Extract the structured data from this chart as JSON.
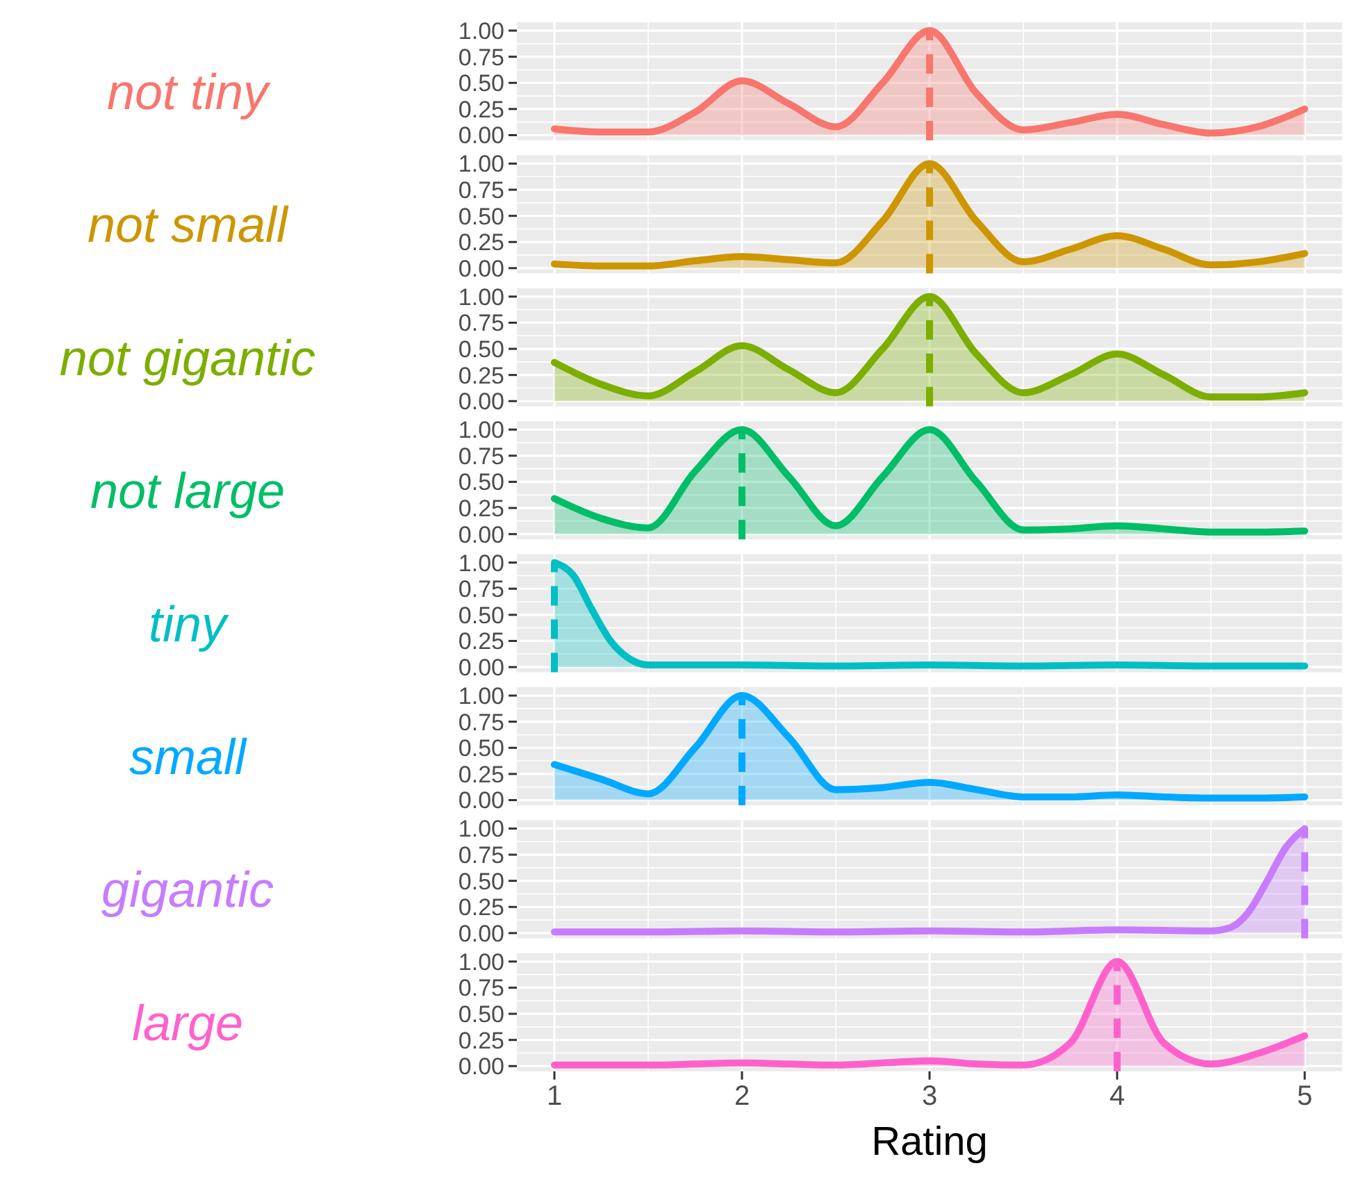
{
  "chart_data": [
    {
      "type": "area",
      "title": "not tiny",
      "x": [
        1,
        1.25,
        1.5,
        1.75,
        2,
        2.25,
        2.5,
        2.75,
        3,
        3.25,
        3.5,
        3.75,
        4,
        4.25,
        4.5,
        4.75,
        5
      ],
      "series": [
        {
          "color": "#f8766d",
          "values": [
            0.06,
            0.03,
            0.03,
            0.22,
            0.52,
            0.3,
            0.08,
            0.5,
            1.0,
            0.4,
            0.05,
            0.12,
            0.2,
            0.1,
            0.02,
            0.08,
            0.25
          ]
        }
      ],
      "xlim": [
        0.8,
        5.2
      ],
      "ylim": [
        -0.05,
        1.08
      ],
      "xticks": [
        1,
        2,
        3,
        4,
        5
      ],
      "yticks": [
        {
          "value": 0,
          "label": "0.00"
        },
        {
          "value": 0.25,
          "label": "0.25"
        },
        {
          "value": 0.5,
          "label": "0.50"
        },
        {
          "value": 0.75,
          "label": "0.75"
        },
        {
          "value": 1,
          "label": "1.00"
        }
      ],
      "grid": true,
      "tick_labels": "y",
      "ref_lines": [
        {
          "axis": "x",
          "value": 3,
          "color": "#f8766d",
          "line_style": "dashed"
        }
      ]
    },
    {
      "type": "area",
      "title": "not small",
      "x": [
        1,
        1.25,
        1.5,
        1.75,
        2,
        2.25,
        2.5,
        2.75,
        3,
        3.25,
        3.5,
        3.75,
        4,
        4.25,
        4.5,
        4.75,
        5
      ],
      "series": [
        {
          "color": "#cd9600",
          "values": [
            0.04,
            0.02,
            0.02,
            0.07,
            0.11,
            0.08,
            0.05,
            0.45,
            1.0,
            0.45,
            0.06,
            0.18,
            0.31,
            0.18,
            0.03,
            0.06,
            0.14
          ]
        }
      ],
      "xlim": [
        0.8,
        5.2
      ],
      "ylim": [
        -0.05,
        1.08
      ],
      "xticks": [
        1,
        2,
        3,
        4,
        5
      ],
      "yticks": [
        {
          "value": 0,
          "label": "0.00"
        },
        {
          "value": 0.25,
          "label": "0.25"
        },
        {
          "value": 0.5,
          "label": "0.50"
        },
        {
          "value": 0.75,
          "label": "0.75"
        },
        {
          "value": 1,
          "label": "1.00"
        }
      ],
      "grid": true,
      "tick_labels": "y",
      "ref_lines": [
        {
          "axis": "x",
          "value": 3,
          "color": "#cd9600",
          "line_style": "dashed"
        }
      ]
    },
    {
      "type": "area",
      "title": "not gigantic",
      "x": [
        1,
        1.25,
        1.5,
        1.75,
        2,
        2.25,
        2.5,
        2.75,
        3,
        3.25,
        3.5,
        3.75,
        4,
        4.25,
        4.5,
        4.75,
        5
      ],
      "series": [
        {
          "color": "#7cae00",
          "values": [
            0.37,
            0.16,
            0.05,
            0.28,
            0.53,
            0.3,
            0.08,
            0.5,
            1.0,
            0.45,
            0.08,
            0.25,
            0.45,
            0.25,
            0.04,
            0.04,
            0.08
          ]
        }
      ],
      "xlim": [
        0.8,
        5.2
      ],
      "ylim": [
        -0.05,
        1.08
      ],
      "xticks": [
        1,
        2,
        3,
        4,
        5
      ],
      "yticks": [
        {
          "value": 0,
          "label": "0.00"
        },
        {
          "value": 0.25,
          "label": "0.25"
        },
        {
          "value": 0.5,
          "label": "0.50"
        },
        {
          "value": 0.75,
          "label": "0.75"
        },
        {
          "value": 1,
          "label": "1.00"
        }
      ],
      "grid": true,
      "tick_labels": "y",
      "ref_lines": [
        {
          "axis": "x",
          "value": 3,
          "color": "#7cae00",
          "line_style": "dashed"
        }
      ]
    },
    {
      "type": "area",
      "title": "not large",
      "x": [
        1,
        1.25,
        1.5,
        1.75,
        2,
        2.25,
        2.5,
        2.75,
        3,
        3.25,
        3.5,
        3.75,
        4,
        4.25,
        4.5,
        4.75,
        5
      ],
      "series": [
        {
          "color": "#00be67",
          "values": [
            0.34,
            0.15,
            0.06,
            0.6,
            1.0,
            0.55,
            0.08,
            0.55,
            1.0,
            0.5,
            0.04,
            0.05,
            0.08,
            0.05,
            0.02,
            0.02,
            0.03
          ]
        }
      ],
      "xlim": [
        0.8,
        5.2
      ],
      "ylim": [
        -0.05,
        1.08
      ],
      "xticks": [
        1,
        2,
        3,
        4,
        5
      ],
      "yticks": [
        {
          "value": 0,
          "label": "0.00"
        },
        {
          "value": 0.25,
          "label": "0.25"
        },
        {
          "value": 0.5,
          "label": "0.50"
        },
        {
          "value": 0.75,
          "label": "0.75"
        },
        {
          "value": 1,
          "label": "1.00"
        }
      ],
      "grid": true,
      "tick_labels": "y",
      "ref_lines": [
        {
          "axis": "x",
          "value": 2,
          "color": "#00be67",
          "line_style": "dashed"
        }
      ]
    },
    {
      "type": "area",
      "title": "tiny",
      "x": [
        1,
        1.1,
        1.2,
        1.3,
        1.4,
        1.5,
        2,
        2.5,
        3,
        3.5,
        4,
        4.5,
        5
      ],
      "series": [
        {
          "color": "#00bfc4",
          "values": [
            1.0,
            0.88,
            0.55,
            0.25,
            0.08,
            0.02,
            0.02,
            0.01,
            0.02,
            0.01,
            0.02,
            0.01,
            0.01
          ]
        }
      ],
      "xlim": [
        0.8,
        5.2
      ],
      "ylim": [
        -0.05,
        1.08
      ],
      "xticks": [
        1,
        2,
        3,
        4,
        5
      ],
      "yticks": [
        {
          "value": 0,
          "label": "0.00"
        },
        {
          "value": 0.25,
          "label": "0.25"
        },
        {
          "value": 0.5,
          "label": "0.50"
        },
        {
          "value": 0.75,
          "label": "0.75"
        },
        {
          "value": 1,
          "label": "1.00"
        }
      ],
      "grid": true,
      "tick_labels": "y",
      "ref_lines": [
        {
          "axis": "x",
          "value": 1,
          "color": "#00bfc4",
          "line_style": "dashed"
        }
      ]
    },
    {
      "type": "area",
      "title": "small",
      "x": [
        1,
        1.25,
        1.5,
        1.75,
        2,
        2.25,
        2.5,
        2.75,
        3,
        3.25,
        3.5,
        3.75,
        4,
        4.25,
        4.5,
        4.75,
        5
      ],
      "series": [
        {
          "color": "#00a9ff",
          "values": [
            0.34,
            0.2,
            0.06,
            0.5,
            1.0,
            0.6,
            0.1,
            0.12,
            0.17,
            0.1,
            0.03,
            0.03,
            0.05,
            0.03,
            0.02,
            0.02,
            0.03
          ]
        }
      ],
      "xlim": [
        0.8,
        5.2
      ],
      "ylim": [
        -0.05,
        1.08
      ],
      "xticks": [
        1,
        2,
        3,
        4,
        5
      ],
      "yticks": [
        {
          "value": 0,
          "label": "0.00"
        },
        {
          "value": 0.25,
          "label": "0.25"
        },
        {
          "value": 0.5,
          "label": "0.50"
        },
        {
          "value": 0.75,
          "label": "0.75"
        },
        {
          "value": 1,
          "label": "1.00"
        }
      ],
      "grid": true,
      "tick_labels": "y",
      "ref_lines": [
        {
          "axis": "x",
          "value": 2,
          "color": "#00a9ff",
          "line_style": "dashed"
        }
      ]
    },
    {
      "type": "area",
      "title": "gigantic",
      "x": [
        1,
        1.5,
        2,
        2.5,
        3,
        3.5,
        4,
        4.5,
        4.6,
        4.7,
        4.8,
        4.9,
        5
      ],
      "series": [
        {
          "color": "#c77cff",
          "values": [
            0.01,
            0.01,
            0.02,
            0.01,
            0.02,
            0.01,
            0.03,
            0.02,
            0.05,
            0.2,
            0.5,
            0.82,
            1.0
          ]
        }
      ],
      "xlim": [
        0.8,
        5.2
      ],
      "ylim": [
        -0.05,
        1.08
      ],
      "xticks": [
        1,
        2,
        3,
        4,
        5
      ],
      "yticks": [
        {
          "value": 0,
          "label": "0.00"
        },
        {
          "value": 0.25,
          "label": "0.25"
        },
        {
          "value": 0.5,
          "label": "0.50"
        },
        {
          "value": 0.75,
          "label": "0.75"
        },
        {
          "value": 1,
          "label": "1.00"
        }
      ],
      "grid": true,
      "tick_labels": "y",
      "ref_lines": [
        {
          "axis": "x",
          "value": 5,
          "color": "#c77cff",
          "line_style": "dashed"
        }
      ]
    },
    {
      "type": "area",
      "title": "large",
      "xlabel": "Rating",
      "x": [
        1,
        1.25,
        1.5,
        1.75,
        2,
        2.25,
        2.5,
        2.75,
        3,
        3.25,
        3.5,
        3.75,
        4,
        4.25,
        4.5,
        4.75,
        5
      ],
      "series": [
        {
          "color": "#ff61cc",
          "values": [
            0.01,
            0.01,
            0.01,
            0.02,
            0.03,
            0.02,
            0.01,
            0.03,
            0.05,
            0.02,
            0.01,
            0.22,
            1.0,
            0.22,
            0.02,
            0.12,
            0.29
          ]
        }
      ],
      "xlim": [
        0.8,
        5.2
      ],
      "ylim": [
        -0.05,
        1.08
      ],
      "xticks": [
        1,
        2,
        3,
        4,
        5
      ],
      "yticks": [
        {
          "value": 0,
          "label": "0.00"
        },
        {
          "value": 0.25,
          "label": "0.25"
        },
        {
          "value": 0.5,
          "label": "0.50"
        },
        {
          "value": 0.75,
          "label": "0.75"
        },
        {
          "value": 1,
          "label": "1.00"
        }
      ],
      "grid": true,
      "ref_lines": [
        {
          "axis": "x",
          "value": 4,
          "color": "#ff61cc",
          "line_style": "dashed"
        }
      ]
    }
  ]
}
